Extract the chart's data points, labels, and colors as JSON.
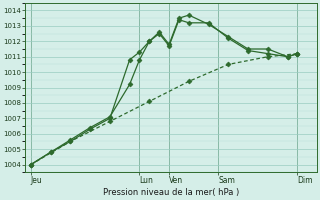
{
  "xlabel": "Pression niveau de la mer( hPa )",
  "bg_color": "#d5eee8",
  "plot_bg_color": "#d5eee8",
  "line_color": "#2d6a2d",
  "grid_minor_color": "#b8ddd5",
  "grid_major_color": "#99ccc0",
  "ylim": [
    1003.5,
    1014.5
  ],
  "yticks": [
    1004,
    1005,
    1006,
    1007,
    1008,
    1009,
    1010,
    1011,
    1012,
    1013,
    1014
  ],
  "x_day_labels": [
    "Jeu",
    "Lun",
    "Ven",
    "Sam",
    "Dim"
  ],
  "x_day_positions": [
    0,
    5.5,
    7.0,
    9.5,
    13.5
  ],
  "xlim": [
    -0.3,
    14.5
  ],
  "series1_x": [
    0,
    1,
    2,
    3,
    4,
    5,
    5.5,
    6,
    6.5,
    7,
    7.5,
    8,
    9,
    10,
    11,
    12,
    13,
    13.5
  ],
  "series1_y": [
    1004.0,
    1004.8,
    1005.5,
    1006.3,
    1007.0,
    1010.8,
    1011.3,
    1012.0,
    1012.6,
    1011.8,
    1013.5,
    1013.7,
    1013.1,
    1012.3,
    1011.5,
    1011.5,
    1011.0,
    1011.2
  ],
  "series2_x": [
    0,
    1,
    2,
    3,
    4,
    5,
    5.5,
    6,
    6.5,
    7,
    7.5,
    8,
    9,
    10,
    11,
    12,
    13,
    13.5
  ],
  "series2_y": [
    1004.0,
    1004.8,
    1005.6,
    1006.4,
    1007.1,
    1009.2,
    1010.8,
    1012.0,
    1012.5,
    1011.7,
    1013.4,
    1013.2,
    1013.2,
    1012.2,
    1011.4,
    1011.2,
    1011.0,
    1011.2
  ],
  "series3_x": [
    0,
    2,
    4,
    6,
    8,
    10,
    12,
    13.5
  ],
  "series3_y": [
    1004.0,
    1005.5,
    1006.8,
    1008.1,
    1009.4,
    1010.5,
    1011.0,
    1011.2
  ]
}
